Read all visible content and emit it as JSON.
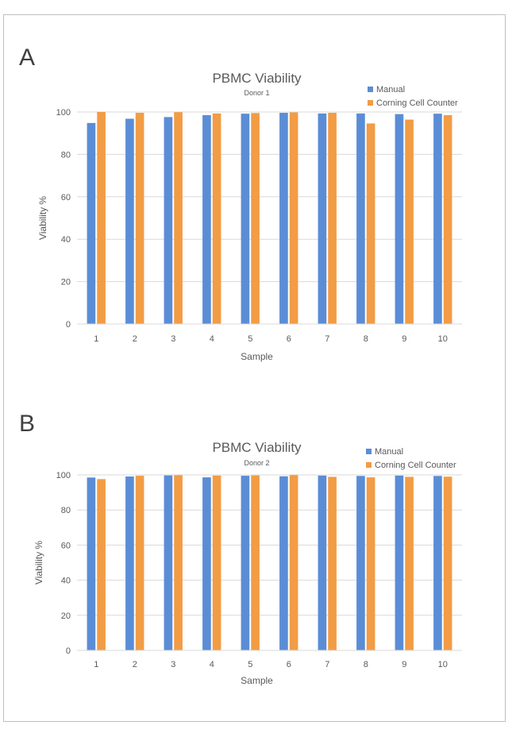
{
  "colors": {
    "manual": "#5b8dd6",
    "corning": "#f29c45",
    "grid": "#d9d9d9",
    "axis_text": "#595959",
    "title_text": "#595959"
  },
  "panels": [
    {
      "letter": "A"
    },
    {
      "letter": "B"
    }
  ],
  "chart_data": [
    {
      "type": "bar",
      "title": "PBMC Viability",
      "subtitle": "Donor 1",
      "xlabel": "Sample",
      "ylabel": "Viability %",
      "ylim": [
        0,
        100
      ],
      "yticks": [
        0,
        20,
        40,
        60,
        80,
        100
      ],
      "grid": true,
      "legend_position": "top-right",
      "categories": [
        "1",
        "2",
        "3",
        "4",
        "5",
        "6",
        "7",
        "8",
        "9",
        "10"
      ],
      "series": [
        {
          "name": "Manual",
          "color": "#5b8dd6",
          "values": [
            94.8,
            96.8,
            97.6,
            98.5,
            99.2,
            99.6,
            99.3,
            99.3,
            99.0,
            99.2
          ]
        },
        {
          "name": "Corning Cell Counter",
          "color": "#f29c45",
          "values": [
            100,
            99.6,
            99.9,
            99.3,
            99.5,
            99.8,
            99.6,
            94.6,
            96.4,
            98.5
          ]
        }
      ]
    },
    {
      "type": "bar",
      "title": "PBMC Viability",
      "subtitle": "Donor 2",
      "xlabel": "Sample",
      "ylabel": "Viability %",
      "ylim": [
        0,
        100
      ],
      "yticks": [
        0,
        20,
        40,
        60,
        80,
        100
      ],
      "grid": true,
      "legend_position": "top-right",
      "categories": [
        "1",
        "2",
        "3",
        "4",
        "5",
        "6",
        "7",
        "8",
        "9",
        "10"
      ],
      "series": [
        {
          "name": "Manual",
          "color": "#5b8dd6",
          "values": [
            98.5,
            99.1,
            99.7,
            98.6,
            99.5,
            99.2,
            99.6,
            99.4,
            99.6,
            99.4
          ]
        },
        {
          "name": "Corning Cell Counter",
          "color": "#f29c45",
          "values": [
            97.6,
            99.5,
            99.8,
            99.6,
            99.7,
            99.9,
            98.9,
            98.6,
            98.9,
            99.0
          ]
        }
      ]
    }
  ]
}
